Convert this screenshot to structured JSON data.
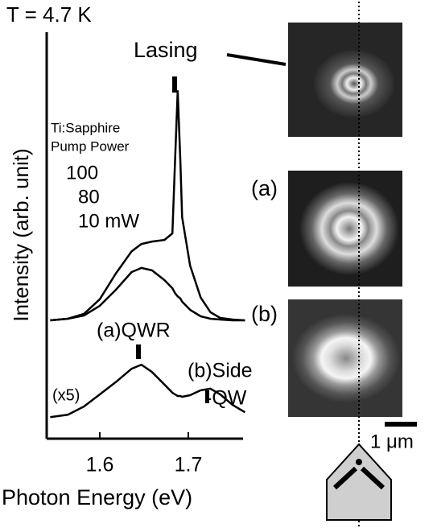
{
  "chart_data": {
    "type": "line",
    "title": "T = 4.7 K",
    "x_label": "Photon Energy (eV)",
    "y_label": "Intensity (arb. unit)",
    "x": [
      1.544,
      1.564,
      1.582,
      1.6,
      1.618,
      1.636,
      1.647,
      1.659,
      1.673,
      1.682,
      1.685,
      1.688,
      1.691,
      1.693,
      1.702,
      1.714,
      1.725,
      1.736,
      1.75,
      1.764
    ],
    "series": [
      {
        "name": "100",
        "color": "#000000",
        "values": [
          2.91,
          2.95,
          3.07,
          3.43,
          4.06,
          4.61,
          4.79,
          4.85,
          4.89,
          5.05,
          6.83,
          8.55,
          6.83,
          5.45,
          4.26,
          3.47,
          3.11,
          2.97,
          2.93,
          2.91
        ]
      },
      {
        "name": "10 mW",
        "color": "#000000",
        "values": [
          2.91,
          2.95,
          3.03,
          3.27,
          3.66,
          4.1,
          4.2,
          4.14,
          3.9,
          3.7,
          3.58,
          3.5,
          3.45,
          3.37,
          3.17,
          3.01,
          2.95,
          2.93,
          2.91,
          2.91
        ]
      },
      {
        "name": "(x5)",
        "color": "#000000",
        "values": [
          0.53,
          0.59,
          0.79,
          1.09,
          1.39,
          1.72,
          1.82,
          1.64,
          1.33,
          1.13,
          1.09,
          1.05,
          1.05,
          1.03,
          1.07,
          1.19,
          1.23,
          1.09,
          0.83,
          0.65
        ]
      }
    ],
    "xlim": [
      1.54,
      1.77
    ],
    "xticks": [
      1.6,
      1.7
    ],
    "ylim": [
      0,
      10
    ],
    "annotations": {
      "pump_title_1": "Ti:Sapphire",
      "pump_title_2": "Pump Power",
      "mid_power": "80",
      "qwr": "(a)QWR",
      "side_1": "(b)Side",
      "side_2": "-QW",
      "lasing": "Lasing",
      "image_a": "(a)",
      "image_b": "(b)",
      "scale": "1 μm"
    }
  }
}
